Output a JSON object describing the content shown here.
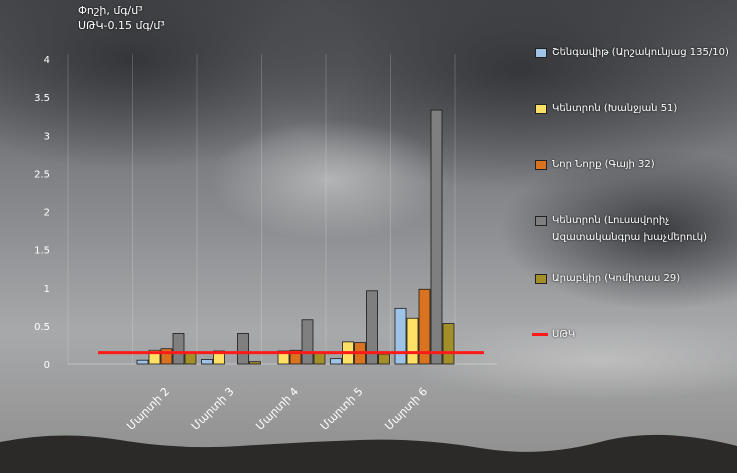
{
  "y_title_line1": "Փոշի, մգ/մ³",
  "y_title_line2": "ՍԹԿ-0.15 մգ/մ³",
  "chart_data": {
    "type": "bar",
    "categories": [
      "Մարտի 2",
      "Մարտի 3",
      "Մարտի 4",
      "Մարտի 5",
      "Մարտի 6"
    ],
    "ylim": [
      0,
      4
    ],
    "yticks": [
      "0",
      "0.5",
      "1",
      "1.5",
      "2",
      "2.5",
      "3",
      "3.5",
      "4"
    ],
    "grid": true,
    "legend_position": "right",
    "series": [
      {
        "name": "Շենգավիթ (Արշակունյաց 135/10)",
        "color": "#9dc3e6",
        "values": [
          0.05,
          0.06,
          0.0,
          0.07,
          0.73
        ]
      },
      {
        "name": "Կենտրոն (Խանջյան 51)",
        "color": "#ffe066",
        "values": [
          0.18,
          0.17,
          0.17,
          0.29,
          0.6
        ]
      },
      {
        "name": "Նոր Նորք (Գայի 32)",
        "color": "#d9731f",
        "values": [
          0.2,
          0.0,
          0.18,
          0.28,
          0.98
        ]
      },
      {
        "name": "Կենտրոն (Լուսավորիչ Ազատականգրա խաչմերուկ)",
        "color": "#7f7f7f",
        "values": [
          0.4,
          0.4,
          0.58,
          0.96,
          3.33
        ]
      },
      {
        "name": "Արաբկիր (Կոմիտաս 29)",
        "color": "#a38f2a",
        "values": [
          0.15,
          0.03,
          0.15,
          0.13,
          0.53
        ]
      }
    ],
    "reference_line": {
      "name": "ՍԹԿ",
      "value": 0.15,
      "color": "#ff1a1a"
    }
  }
}
